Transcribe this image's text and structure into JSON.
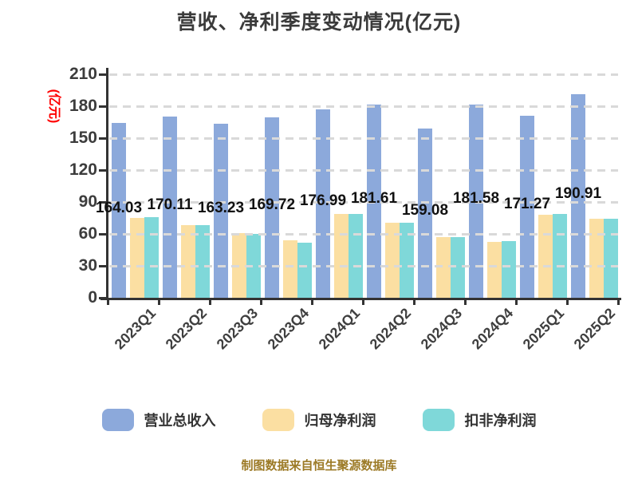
{
  "title": "营收、净利季度变动情况(亿元)",
  "y_axis_unit": "(亿元)",
  "footer": "制图数据来自恒生聚源数据库",
  "colors": {
    "background": "#ffffff",
    "title_text": "#3b3b3b",
    "axis": "#333333",
    "gridline": "#d9d9d9",
    "tick_text": "#3c3c3c",
    "value_label_text": "#111111",
    "y_unit_label": "#ff0000",
    "footer_text": "#9c7a26",
    "series_blue": "#8ca9db",
    "series_yellow": "#fbdfa2",
    "series_teal": "#7fd8d9"
  },
  "chart_data": {
    "type": "bar",
    "title": "营收、净利季度变动情况(亿元)",
    "categories": [
      "2023Q1",
      "2023Q2",
      "2023Q3",
      "2023Q4",
      "2024Q1",
      "2024Q2",
      "2024Q3",
      "2024Q4",
      "2025Q1",
      "2025Q2"
    ],
    "series": [
      {
        "name": "营业总收入",
        "color": "#8ca9db",
        "values": [
          164.03,
          170.11,
          163.23,
          169.72,
          176.99,
          181.61,
          159.08,
          181.58,
          171.27,
          190.91
        ],
        "labels_shown": true
      },
      {
        "name": "归母净利润",
        "color": "#fbdfa2",
        "values": [
          75.0,
          68.0,
          60.8,
          54.0,
          78.6,
          70.5,
          57.0,
          52.5,
          78.0,
          74.3
        ],
        "labels_shown": false
      },
      {
        "name": "扣非净利润",
        "color": "#7fd8d9",
        "values": [
          75.7,
          68.6,
          60.0,
          51.8,
          79.0,
          70.8,
          57.3,
          53.0,
          78.8,
          74.6
        ],
        "labels_shown": false
      }
    ],
    "ylabel": "(亿元)",
    "ylim": [
      0,
      210
    ],
    "y_ticks": [
      0,
      30,
      60,
      90,
      120,
      150,
      180,
      210
    ],
    "grid": true,
    "grid_style": "dashed, drawn in front of bars",
    "legend_position": "bottom",
    "x_label_rotation_deg": 45
  }
}
